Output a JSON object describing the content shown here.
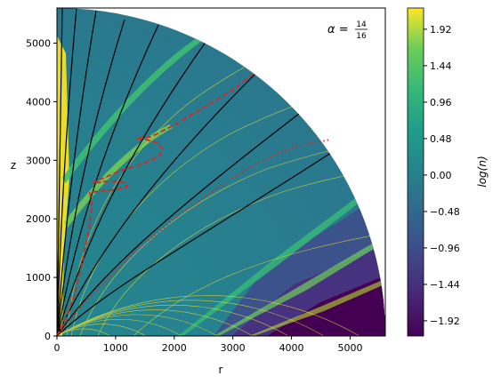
{
  "chart_data": {
    "type": "heatmap",
    "title": "",
    "annotation": {
      "prefix": "α = ",
      "numerator": "14",
      "denominator": "16"
    },
    "xlabel": "r",
    "ylabel": "z",
    "xlim": [
      0,
      5600
    ],
    "ylim": [
      0,
      5600
    ],
    "xticks": [
      0,
      1000,
      2000,
      3000,
      4000,
      5000
    ],
    "yticks": [
      0,
      1000,
      2000,
      3000,
      4000,
      5000
    ],
    "colorbar": {
      "label": "log(n)",
      "range": [
        -2.12,
        2.2
      ],
      "ticks": [
        "1.92",
        "1.44",
        "0.96",
        "0.48",
        "0.00",
        "−0.48",
        "−0.96",
        "−1.44",
        "−1.92"
      ],
      "tick_values": [
        1.92,
        1.44,
        0.96,
        0.48,
        0.0,
        -0.48,
        -0.96,
        -1.44,
        -1.92
      ],
      "colormap": "viridis"
    },
    "domain_radius": 5600,
    "series": [
      {
        "style": "dashed",
        "color": "#d62728",
        "points": [
          [
            0,
            0
          ],
          [
            150,
            300
          ],
          [
            300,
            700
          ],
          [
            420,
            1200
          ],
          [
            520,
            1700
          ],
          [
            600,
            2200
          ],
          [
            560,
            2450
          ],
          [
            700,
            2470
          ],
          [
            1000,
            2500
          ],
          [
            1200,
            2550
          ],
          [
            1150,
            2620
          ],
          [
            900,
            2650
          ],
          [
            700,
            2620
          ],
          [
            600,
            2620
          ],
          [
            800,
            2700
          ],
          [
            1100,
            2830
          ],
          [
            1500,
            2950
          ],
          [
            1750,
            3080
          ],
          [
            1800,
            3200
          ],
          [
            1700,
            3300
          ],
          [
            1500,
            3360
          ],
          [
            1350,
            3370
          ],
          [
            1600,
            3400
          ],
          [
            2000,
            3600
          ],
          [
            2500,
            3900
          ],
          [
            3000,
            4200
          ],
          [
            3380,
            4500
          ]
        ]
      },
      {
        "style": "dotted",
        "color": "#d62728",
        "points": [
          [
            0,
            0
          ],
          [
            200,
            250
          ],
          [
            500,
            600
          ],
          [
            900,
            1000
          ],
          [
            1400,
            1500
          ],
          [
            2000,
            2000
          ],
          [
            2700,
            2500
          ],
          [
            3400,
            2950
          ],
          [
            4100,
            3250
          ],
          [
            4650,
            3350
          ]
        ]
      }
    ]
  }
}
